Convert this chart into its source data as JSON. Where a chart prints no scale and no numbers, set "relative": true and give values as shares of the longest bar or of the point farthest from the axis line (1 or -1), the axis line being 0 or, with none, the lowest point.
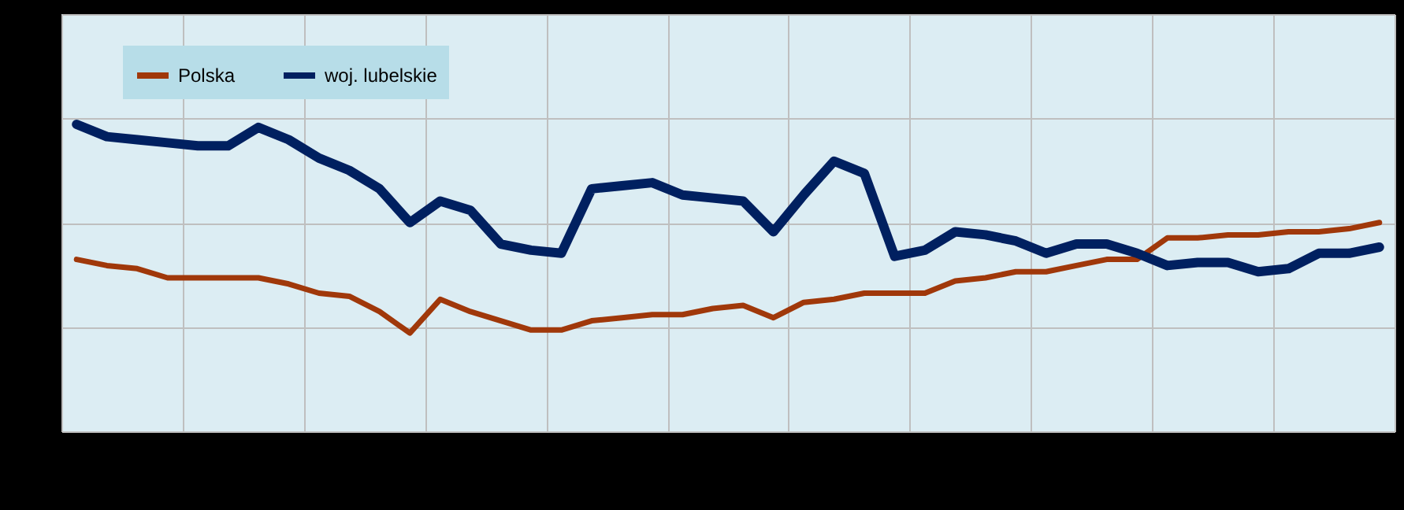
{
  "chart_data": {
    "type": "line",
    "relative": true,
    "grid": true,
    "legend": "top left",
    "line_style": "solid",
    "marker": "none",
    "categories": [
      null,
      null,
      null,
      null,
      null,
      null,
      null,
      null,
      null,
      null,
      null,
      null,
      null,
      null,
      null,
      null,
      null,
      null,
      null,
      null,
      null,
      null,
      null,
      null,
      null,
      null,
      null,
      null,
      null,
      null,
      null,
      null,
      null,
      null,
      null,
      null,
      null,
      null,
      null,
      null,
      null,
      null,
      null,
      null
    ],
    "series": [
      {
        "name": "Polska",
        "color": "#a0380a",
        "values": [
          0.56,
          0.54,
          0.53,
          0.5,
          0.5,
          0.5,
          0.5,
          0.48,
          0.45,
          0.44,
          0.39,
          0.32,
          0.43,
          0.39,
          0.36,
          0.33,
          0.33,
          0.36,
          0.37,
          0.38,
          0.38,
          0.4,
          0.41,
          0.37,
          0.42,
          0.43,
          0.45,
          0.45,
          0.45,
          0.49,
          0.5,
          0.52,
          0.52,
          0.54,
          0.56,
          0.56,
          0.63,
          0.63,
          0.64,
          0.64,
          0.65,
          0.65,
          0.66,
          0.68
        ]
      },
      {
        "name": "woj. lubelskie",
        "color": "#002060",
        "values": [
          1.0,
          0.96,
          0.95,
          0.94,
          0.93,
          0.93,
          0.99,
          0.95,
          0.89,
          0.85,
          0.79,
          0.68,
          0.75,
          0.72,
          0.61,
          0.59,
          0.58,
          0.79,
          0.8,
          0.81,
          0.77,
          0.76,
          0.75,
          0.65,
          0.77,
          0.88,
          0.84,
          0.57,
          0.59,
          0.65,
          0.64,
          0.62,
          0.58,
          0.61,
          0.61,
          0.58,
          0.54,
          0.55,
          0.55,
          0.52,
          0.53,
          0.58,
          0.58,
          0.6
        ]
      }
    ]
  }
}
